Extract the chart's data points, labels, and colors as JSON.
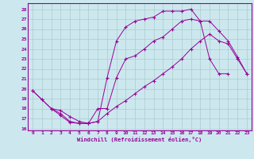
{
  "xlabel": "Windchill (Refroidissement éolien,°C)",
  "bg_color": "#cce8ee",
  "grid_color": "#aacccc",
  "line_color": "#990099",
  "xlim": [
    -0.5,
    23.5
  ],
  "ylim": [
    15.8,
    28.6
  ],
  "yticks": [
    16,
    17,
    18,
    19,
    20,
    21,
    22,
    23,
    24,
    25,
    26,
    27,
    28
  ],
  "xticks": [
    0,
    1,
    2,
    3,
    4,
    5,
    6,
    7,
    8,
    9,
    10,
    11,
    12,
    13,
    14,
    15,
    16,
    17,
    18,
    19,
    20,
    21,
    22,
    23
  ],
  "curve1_x": [
    0,
    1,
    2,
    3,
    4,
    5,
    6,
    7,
    8,
    9,
    10,
    11,
    12,
    13,
    14,
    15,
    16,
    17,
    18,
    19,
    20,
    21
  ],
  "curve1_y": [
    19.8,
    18.9,
    18.0,
    17.3,
    16.6,
    16.5,
    16.5,
    16.7,
    21.1,
    24.8,
    26.2,
    26.8,
    27.0,
    27.2,
    27.8,
    27.8,
    27.8,
    28.0,
    26.8,
    23.0,
    21.5,
    21.5
  ],
  "curve2_x": [
    0,
    1,
    2,
    3,
    4,
    5,
    6,
    7,
    8,
    9,
    10,
    11,
    12,
    13,
    14,
    15,
    16,
    17,
    18,
    19,
    20,
    21,
    22,
    23
  ],
  "curve2_y": [
    19.8,
    18.9,
    18.0,
    17.5,
    16.7,
    16.5,
    16.5,
    16.7,
    17.5,
    18.2,
    18.8,
    19.5,
    20.2,
    20.8,
    21.5,
    22.2,
    23.0,
    24.0,
    24.8,
    25.5,
    24.8,
    24.5,
    23.0,
    21.5
  ],
  "curve3_x": [
    2,
    3,
    4,
    5,
    6,
    7,
    8,
    9,
    10,
    11,
    12,
    13,
    14,
    15,
    16,
    17,
    18,
    19,
    20,
    21,
    22,
    23
  ],
  "curve3_y": [
    18.0,
    17.8,
    17.2,
    16.7,
    16.5,
    18.0,
    18.0,
    21.1,
    23.0,
    23.3,
    24.0,
    24.8,
    25.2,
    26.0,
    26.8,
    27.0,
    26.8,
    26.8,
    25.8,
    24.8,
    23.2,
    21.5
  ]
}
